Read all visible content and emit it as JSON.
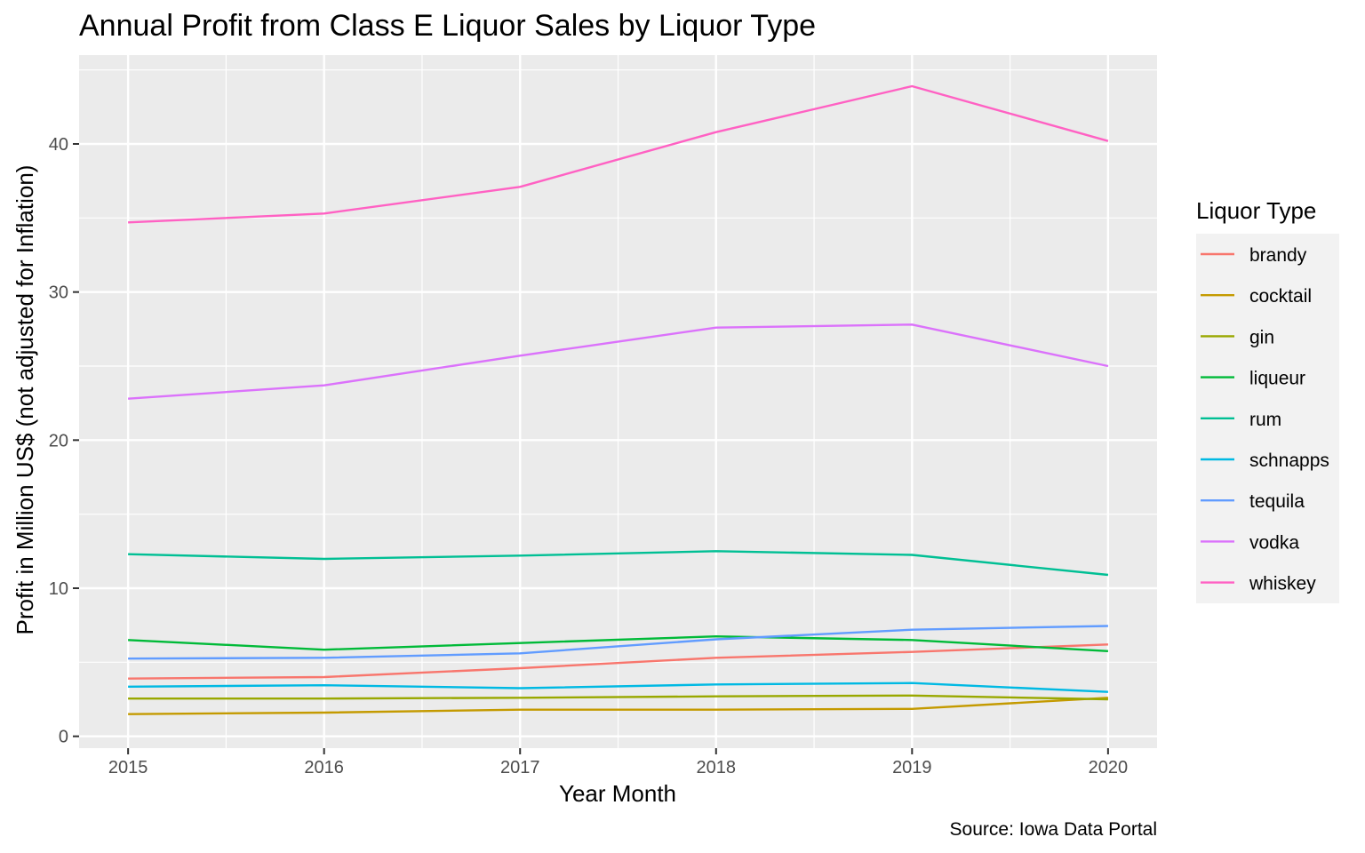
{
  "chart_data": {
    "type": "line",
    "title": "Annual Profit from Class E Liquor Sales by Liquor Type",
    "xlabel": "Year Month",
    "ylabel": "Profit in Million US$ (not adjusted for Inflation)",
    "caption": "Source: Iowa Data Portal",
    "legend_title": "Liquor Type",
    "legend_position": "right",
    "grid": true,
    "x": [
      2015,
      2016,
      2017,
      2018,
      2019,
      2020
    ],
    "x_ticks": [
      "2015",
      "2016",
      "2017",
      "2018",
      "2019",
      "2020"
    ],
    "y_ticks": [
      "0",
      "10",
      "20",
      "30",
      "40"
    ],
    "xlim": [
      2014.75,
      2020.25
    ],
    "ylim": [
      -0.8,
      46
    ],
    "series": [
      {
        "name": "brandy",
        "color": "#F8766D",
        "values": [
          3.9,
          4.0,
          4.6,
          5.3,
          5.7,
          6.2
        ]
      },
      {
        "name": "cocktail",
        "color": "#C49A00",
        "values": [
          1.5,
          1.6,
          1.8,
          1.8,
          1.85,
          2.6
        ]
      },
      {
        "name": "gin",
        "color": "#99A800",
        "values": [
          2.55,
          2.55,
          2.6,
          2.7,
          2.75,
          2.5
        ]
      },
      {
        "name": "liqueur",
        "color": "#00BA38",
        "values": [
          6.5,
          5.85,
          6.3,
          6.75,
          6.5,
          5.75
        ]
      },
      {
        "name": "rum",
        "color": "#00BF94",
        "values": [
          12.3,
          11.98,
          12.2,
          12.5,
          12.25,
          10.9
        ]
      },
      {
        "name": "schnapps",
        "color": "#00B9E3",
        "values": [
          3.35,
          3.45,
          3.25,
          3.5,
          3.6,
          3.0
        ]
      },
      {
        "name": "tequila",
        "color": "#619CFF",
        "values": [
          5.25,
          5.3,
          5.6,
          6.55,
          7.2,
          7.45
        ]
      },
      {
        "name": "vodka",
        "color": "#DB72FB",
        "values": [
          22.8,
          23.7,
          25.7,
          27.6,
          27.8,
          25.0
        ]
      },
      {
        "name": "whiskey",
        "color": "#FF61C3",
        "values": [
          34.7,
          35.3,
          37.1,
          40.8,
          43.9,
          40.2
        ]
      }
    ]
  }
}
